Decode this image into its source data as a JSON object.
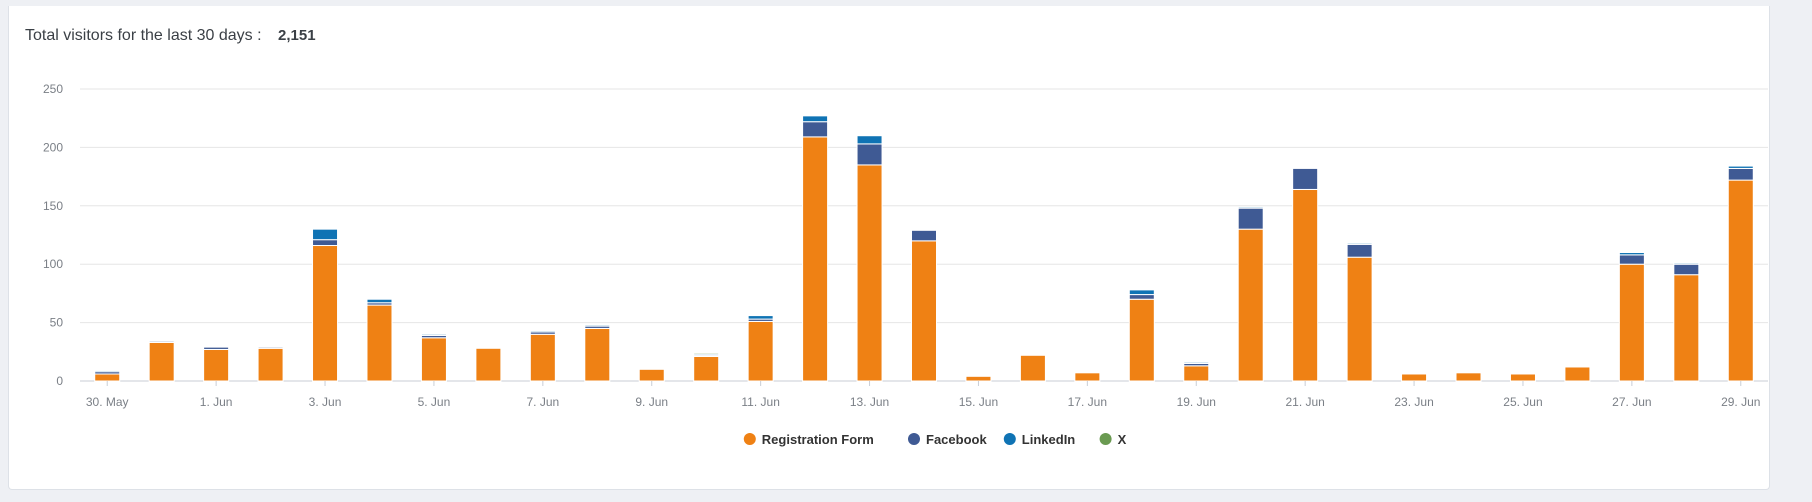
{
  "summary": {
    "label": "Total visitors for the last 30 days :",
    "value": "2,151"
  },
  "chart_data": {
    "type": "bar",
    "stacked": true,
    "title": "",
    "xlabel": "",
    "ylabel": "",
    "ylim": [
      0,
      250
    ],
    "yticks": [
      0,
      50,
      100,
      150,
      200,
      250
    ],
    "grid": true,
    "legend_position": "bottom-center",
    "categories": [
      "30. May",
      "31. May",
      "1. Jun",
      "2. Jun",
      "3. Jun",
      "4. Jun",
      "5. Jun",
      "6. Jun",
      "7. Jun",
      "8. Jun",
      "9. Jun",
      "10. Jun",
      "11. Jun",
      "12. Jun",
      "13. Jun",
      "14. Jun",
      "15. Jun",
      "16. Jun",
      "17. Jun",
      "18. Jun",
      "19. Jun",
      "20. Jun",
      "21. Jun",
      "22. Jun",
      "23. Jun",
      "24. Jun",
      "25. Jun",
      "26. Jun",
      "27. Jun",
      "28. Jun",
      "29. Jun"
    ],
    "x_tick_labels": [
      "30. May",
      "",
      "1. Jun",
      "",
      "3. Jun",
      "",
      "5. Jun",
      "",
      "7. Jun",
      "",
      "9. Jun",
      "",
      "11. Jun",
      "",
      "13. Jun",
      "",
      "15. Jun",
      "",
      "17. Jun",
      "",
      "19. Jun",
      "",
      "21. Jun",
      "",
      "23. Jun",
      "",
      "25. Jun",
      "",
      "27. Jun",
      "",
      "29. Jun"
    ],
    "series": [
      {
        "name": "Registration Form",
        "color": "#ef8114",
        "values": [
          6,
          33,
          27,
          28,
          116,
          65,
          37,
          28,
          40,
          45,
          10,
          21,
          51,
          209,
          185,
          120,
          4,
          22,
          7,
          70,
          13,
          130,
          164,
          106,
          6,
          7,
          6,
          12,
          100,
          91,
          172
        ]
      },
      {
        "name": "Facebook",
        "color": "#3f5a94",
        "values": [
          2,
          1,
          2,
          1,
          5,
          2,
          2,
          0,
          2,
          2,
          0,
          1,
          2,
          13,
          18,
          9,
          0,
          0,
          0,
          4,
          2,
          18,
          18,
          11,
          0,
          0,
          0,
          0,
          8,
          9,
          10
        ]
      },
      {
        "name": "LinkedIn",
        "color": "#0f73b4",
        "values": [
          1,
          0,
          0,
          0,
          9,
          3,
          1,
          0,
          1,
          1,
          0,
          1,
          3,
          5,
          7,
          0,
          0,
          0,
          0,
          4,
          1,
          1,
          0,
          1,
          0,
          0,
          0,
          0,
          2,
          1,
          2
        ]
      },
      {
        "name": "X",
        "color": "#6a9a51",
        "values": [
          0,
          0,
          0,
          0,
          0,
          0,
          0,
          0,
          0,
          0,
          0,
          1,
          0,
          0,
          0,
          0,
          0,
          0,
          0,
          0,
          0,
          0,
          0,
          0,
          0,
          0,
          0,
          0,
          0,
          0,
          0
        ]
      }
    ]
  }
}
